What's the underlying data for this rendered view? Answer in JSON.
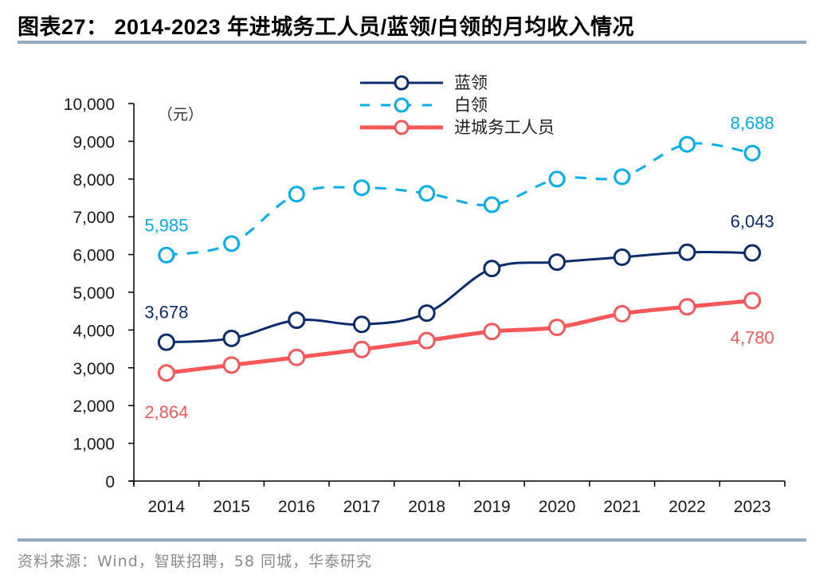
{
  "header": {
    "title": "图表27：  2014-2023 年进城务工人员/蓝领/白领的月均收入情况"
  },
  "footer": {
    "source": "资料来源：Wind，智联招聘，58 同城，华泰研究"
  },
  "chart_data": {
    "type": "line",
    "title": "2014-2023 年进城务工人员/蓝领/白领的月均收入情况",
    "unit_label": "（元）",
    "xlabel": "",
    "ylabel": "",
    "categories": [
      "2014",
      "2015",
      "2016",
      "2017",
      "2018",
      "2019",
      "2020",
      "2021",
      "2022",
      "2023"
    ],
    "ylim": [
      0,
      10000
    ],
    "yticks": [
      0,
      1000,
      2000,
      3000,
      4000,
      5000,
      6000,
      7000,
      8000,
      9000,
      10000
    ],
    "ytick_labels": [
      "0",
      "1,000",
      "2,000",
      "3,000",
      "4,000",
      "5,000",
      "6,000",
      "7,000",
      "8,000",
      "9,000",
      "10,000"
    ],
    "grid": false,
    "legend_position": "top-center",
    "series": [
      {
        "name": "蓝领",
        "color": "#0b2d6e",
        "style": "solid",
        "values": [
          3678,
          3780,
          4260,
          4150,
          4450,
          5630,
          5800,
          5930,
          6060,
          6043
        ],
        "labels": [
          {
            "index": 0,
            "text": "3,678"
          },
          {
            "index": 9,
            "text": "6,043"
          }
        ]
      },
      {
        "name": "白领",
        "color": "#00aeef",
        "style": "dashed",
        "values": [
          5985,
          6290,
          7600,
          7770,
          7620,
          7320,
          8000,
          8060,
          8920,
          8688
        ],
        "labels": [
          {
            "index": 0,
            "text": "5,985"
          },
          {
            "index": 9,
            "text": "8,688"
          }
        ]
      },
      {
        "name": "进城务工人员",
        "color": "#f8575a",
        "style": "solid-thick",
        "values": [
          2864,
          3072,
          3275,
          3485,
          3721,
          3962,
          4072,
          4432,
          4615,
          4780
        ],
        "labels": [
          {
            "index": 0,
            "text": "2,864"
          },
          {
            "index": 9,
            "text": "4,780"
          }
        ]
      }
    ]
  }
}
